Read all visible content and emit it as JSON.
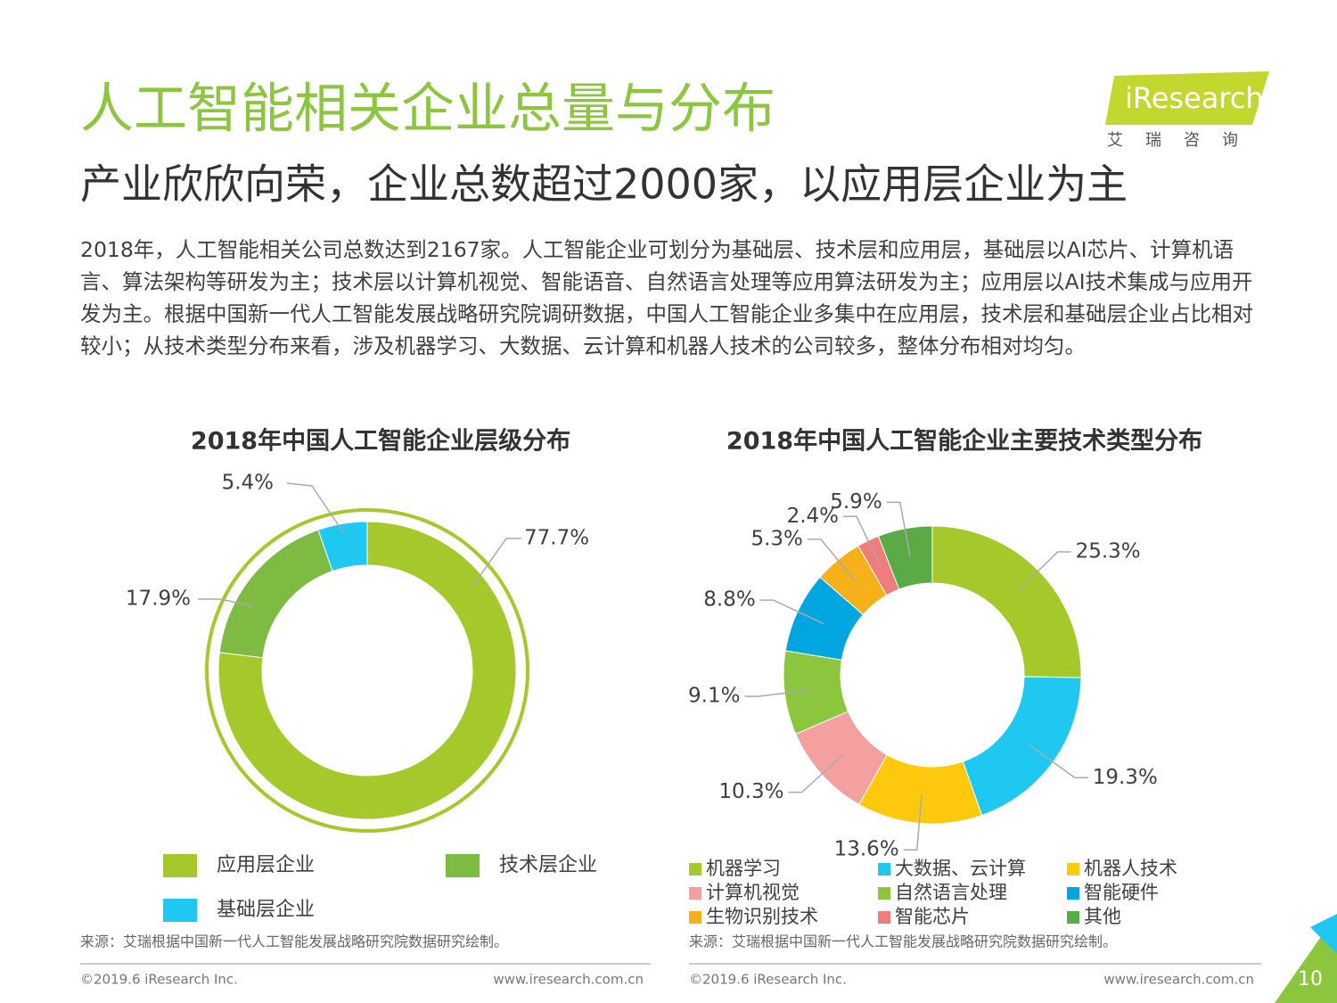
{
  "title": "人工智能相关企业总量与分布",
  "subtitle": "产业欣欣向荣，企业总数超过2000家，以应用层企业为主",
  "logo": {
    "brand": "iResearch",
    "tagline": "艾瑞咨询"
  },
  "body": "2018年，人工智能相关公司总数达到2167家。人工智能企业可划分为基础层、技术层和应用层，基础层以AI芯片、计算机语言、算法架构等研发为主；技术层以计算机视觉、智能语音、自然语言处理等应用算法研发为主；应用层以AI技术集成与应用开发为主。根据中国新一代人工智能发展战略研究院调研数据，中国人工智能企业多集中在应用层，技术层和基础层企业占比相对较小；从技术类型分布来看，涉及机器学习、大数据、云计算和机器人技术的公司较多，整体分布相对均匀。",
  "chart_data": [
    {
      "type": "donut",
      "title": "2018年中国人工智能企业层级分布",
      "categories": [
        "应用层企业",
        "技术层企业",
        "基础层企业"
      ],
      "values": [
        77.7,
        17.9,
        5.4
      ],
      "value_labels": [
        "77.7%",
        "17.9%",
        "5.4%"
      ],
      "colors": [
        "#a5c92a",
        "#7dbb42",
        "#1ec8f0"
      ],
      "source": "来源：艾瑞根据中国新一代人工智能发展战略研究院数据研究绘制。"
    },
    {
      "type": "donut",
      "title": "2018年中国人工智能企业主要技术类型分布",
      "categories": [
        "机器学习",
        "大数据、云计算",
        "机器人技术",
        "计算机视觉",
        "自然语言处理",
        "智能硬件",
        "生物识别技术",
        "智能芯片",
        "其他"
      ],
      "values": [
        25.3,
        19.3,
        13.6,
        10.3,
        9.1,
        8.8,
        5.3,
        2.4,
        5.9
      ],
      "value_labels": [
        "25.3%",
        "19.3%",
        "13.6%",
        "10.3%",
        "9.1%",
        "8.8%",
        "5.3%",
        "2.4%",
        "5.9%"
      ],
      "colors": [
        "#a5c92a",
        "#1ec8f0",
        "#ffc90e",
        "#f4a0a0",
        "#8cc63f",
        "#00a6e0",
        "#f5b01a",
        "#f07c7c",
        "#5aab46"
      ],
      "source": "来源：艾瑞根据中国新一代人工智能发展战略研究院数据研究绘制。"
    }
  ],
  "footer": {
    "copyright": "©2019.6 iResearch Inc.",
    "url": "www.iresearch.com.cn"
  },
  "page_number": 10
}
